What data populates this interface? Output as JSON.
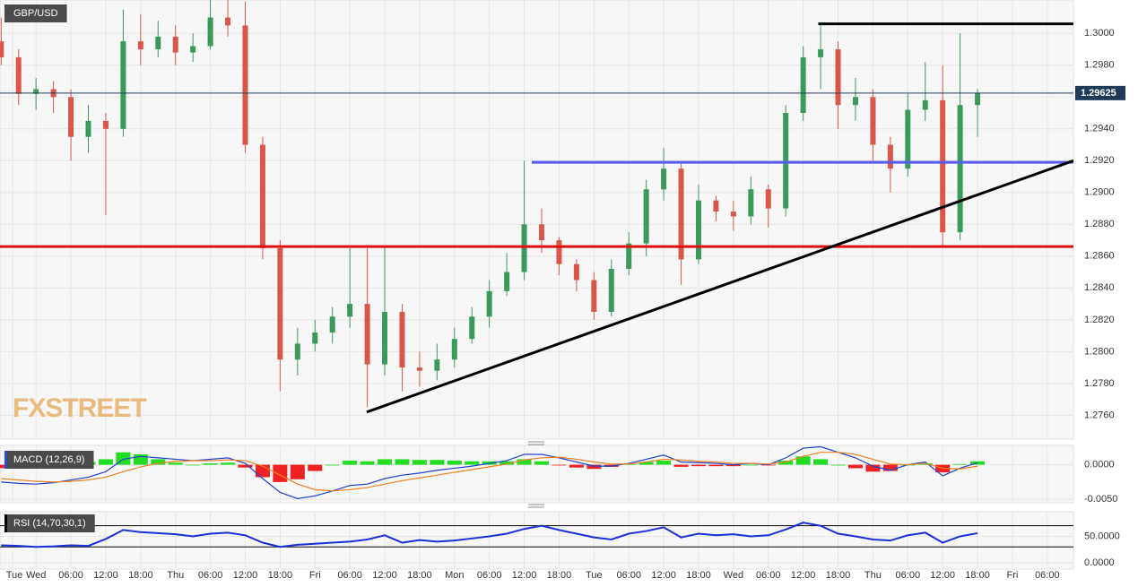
{
  "chart_data": [
    {
      "type": "candlestick",
      "title": "GBP/USD",
      "watermark": "FXSTREET",
      "x": [
        -6,
        -3,
        0,
        3,
        6,
        9,
        12,
        15,
        18,
        21,
        24,
        27,
        30,
        33,
        36,
        39,
        42,
        45,
        48,
        51,
        54,
        57,
        60,
        63,
        66,
        69,
        72,
        75,
        78,
        81,
        84,
        87,
        90,
        93,
        96,
        99,
        102,
        105,
        108,
        111,
        114,
        117,
        120,
        123,
        126,
        129,
        132,
        135,
        138,
        141,
        144,
        147,
        150,
        153,
        156,
        159,
        162
      ],
      "open": [
        1.2995,
        1.2985,
        1.2962,
        1.2965,
        1.296,
        1.2935,
        1.2945,
        1.294,
        1.2995,
        1.299,
        1.2998,
        1.2988,
        1.2992,
        1.301,
        1.3005,
        1.293,
        1.2865,
        1.2795,
        1.2805,
        1.2812,
        1.2822,
        1.283,
        1.2792,
        1.2825,
        1.279,
        1.2788,
        1.2795,
        1.2808,
        1.2822,
        1.2838,
        1.285,
        1.288,
        1.287,
        1.2855,
        1.2845,
        1.2825,
        1.2852,
        1.2868,
        1.2902,
        1.2915,
        1.2858,
        1.2895,
        1.2888,
        1.2885,
        1.2902,
        1.289,
        1.295,
        1.2985,
        1.299,
        1.2955,
        1.296,
        1.293,
        1.2915,
        1.2952,
        1.2958,
        1.2875,
        1.2955
      ],
      "high": [
        1.301,
        1.299,
        1.2972,
        1.297,
        1.2965,
        1.2955,
        1.295,
        1.3015,
        1.3012,
        1.3008,
        1.3005,
        1.3,
        1.3021,
        1.3021,
        1.302,
        1.2935,
        1.287,
        1.2815,
        1.282,
        1.2828,
        1.2865,
        1.2865,
        1.2866,
        1.283,
        1.28,
        1.2805,
        1.2815,
        1.2828,
        1.2845,
        1.2862,
        1.292,
        1.289,
        1.2872,
        1.2858,
        1.285,
        1.2858,
        1.2875,
        1.2908,
        1.2928,
        1.2918,
        1.2905,
        1.2898,
        1.2895,
        1.291,
        1.2905,
        1.2955,
        1.2992,
        1.3007,
        1.2995,
        1.2972,
        1.2965,
        1.2935,
        1.2962,
        1.2982,
        1.298,
        1.3,
        1.2965
      ],
      "low": [
        1.298,
        1.2955,
        1.2952,
        1.295,
        1.292,
        1.2925,
        1.2886,
        1.2935,
        1.298,
        1.2985,
        1.298,
        1.2982,
        1.299,
        1.2998,
        1.2925,
        1.2858,
        1.2775,
        1.2785,
        1.28,
        1.2805,
        1.2815,
        1.2765,
        1.2785,
        1.2775,
        1.2778,
        1.2782,
        1.279,
        1.2805,
        1.2815,
        1.2835,
        1.2845,
        1.2862,
        1.2848,
        1.2838,
        1.282,
        1.2822,
        1.2848,
        1.286,
        1.2895,
        1.2842,
        1.2855,
        1.2882,
        1.2876,
        1.288,
        1.2878,
        1.2885,
        1.2945,
        1.2965,
        1.294,
        1.2945,
        1.292,
        1.29,
        1.291,
        1.2945,
        1.2866,
        1.287,
        1.2935
      ],
      "close": [
        1.2985,
        1.2962,
        1.2965,
        1.296,
        1.2935,
        1.2945,
        1.294,
        1.2995,
        1.299,
        1.2998,
        1.2988,
        1.2992,
        1.301,
        1.3005,
        1.293,
        1.2865,
        1.2795,
        1.2805,
        1.2812,
        1.2822,
        1.283,
        1.2792,
        1.2825,
        1.279,
        1.2788,
        1.2795,
        1.2808,
        1.2822,
        1.2838,
        1.285,
        1.288,
        1.287,
        1.2855,
        1.2845,
        1.2825,
        1.2852,
        1.2868,
        1.2902,
        1.2915,
        1.2858,
        1.2895,
        1.2888,
        1.2885,
        1.2902,
        1.289,
        1.295,
        1.2985,
        1.299,
        1.2955,
        1.296,
        1.293,
        1.2915,
        1.2952,
        1.2958,
        1.2875,
        1.2955,
        1.29625
      ],
      "up_color": "#3a9a5c",
      "down_color": "#d9574a",
      "last_price": 1.29625,
      "last_price_color": "#1f3b5a",
      "levels": [
        {
          "color": "#e01010",
          "x": [
            -6.2,
            178.5
          ],
          "y": [
            1.2866,
            1.2866
          ]
        },
        {
          "color": "#5a5aee",
          "x": [
            85.3,
            178.5
          ],
          "y": [
            1.2919,
            1.2919
          ]
        },
        {
          "color": "#000000",
          "x": [
            134.6,
            178.5
          ],
          "y": [
            1.3006,
            1.3006
          ]
        },
        {
          "color": "#000000",
          "x": [
            56.9,
            178.5
          ],
          "y": [
            1.2762,
            1.292
          ]
        }
      ],
      "xlim": [
        -6.2,
        178.5
      ],
      "ylim": [
        1.2745,
        1.3021
      ],
      "yticks": [
        {
          "value": 1.276,
          "label": "1.2760"
        },
        {
          "value": 1.278,
          "label": "1.2780"
        },
        {
          "value": 1.28,
          "label": "1.2800"
        },
        {
          "value": 1.282,
          "label": "1.2820"
        },
        {
          "value": 1.284,
          "label": "1.2840"
        },
        {
          "value": 1.286,
          "label": "1.2860"
        },
        {
          "value": 1.288,
          "label": "1.2880"
        },
        {
          "value": 1.29,
          "label": "1.2900"
        },
        {
          "value": 1.292,
          "label": "1.2920"
        },
        {
          "value": 1.294,
          "label": "1.2940"
        },
        {
          "value": 1.296,
          "label": "1.2960"
        },
        {
          "value": 1.298,
          "label": "1.2980"
        },
        {
          "value": 1.3,
          "label": "1.3000"
        }
      ],
      "grid": true
    },
    {
      "type": "macd",
      "title": "MACD (12,26,9)",
      "x": [
        -6,
        -3,
        0,
        3,
        6,
        9,
        12,
        15,
        18,
        21,
        24,
        27,
        30,
        33,
        36,
        39,
        42,
        45,
        48,
        51,
        54,
        57,
        60,
        63,
        66,
        69,
        72,
        75,
        78,
        81,
        84,
        87,
        90,
        93,
        96,
        99,
        102,
        105,
        108,
        111,
        114,
        117,
        120,
        123,
        126,
        129,
        132,
        135,
        138,
        141,
        144,
        147,
        150,
        153,
        156,
        159,
        162
      ],
      "series": [
        {
          "color": "#1f3fd1",
          "values": [
            -0.0025,
            -0.0027,
            -0.0028,
            -0.0026,
            -0.0022,
            -0.0018,
            -0.001,
            0.0008,
            0.0012,
            0.001,
            0.0008,
            0.0006,
            0.0008,
            0.001,
            0.0002,
            -0.002,
            -0.004,
            -0.0049,
            -0.0045,
            -0.0038,
            -0.003,
            -0.0028,
            -0.002,
            -0.0015,
            -0.0012,
            -0.0008,
            -0.0005,
            -0.0002,
            0.0002,
            0.0006,
            0.0015,
            0.0015,
            0.001,
            0.0004,
            -0.0002,
            -0.0002,
            0.0002,
            0.0008,
            0.0014,
            0.0004,
            0.0003,
            0.0002,
            0,
            0.0002,
            0,
            0.001,
            0.0024,
            0.0026,
            0.0018,
            0.001,
            -0.0002,
            -0.0008,
            0,
            0.0004,
            -0.0016,
            -0.0005,
            0.0003
          ]
        },
        {
          "color": "#f08020",
          "values": [
            -0.002,
            -0.0022,
            -0.0024,
            -0.0025,
            -0.0024,
            -0.0022,
            -0.0018,
            -0.001,
            -0.0003,
            0.0002,
            0.0005,
            0.0006,
            0.0006,
            0.0007,
            0.0006,
            -0.0002,
            -0.0015,
            -0.0028,
            -0.0036,
            -0.0038,
            -0.0036,
            -0.0033,
            -0.0028,
            -0.0023,
            -0.0019,
            -0.0015,
            -0.0011,
            -0.0007,
            -0.0003,
            0.0001,
            0.0007,
            0.001,
            0.0011,
            0.0008,
            0.0004,
            0.0001,
            0.0001,
            0.0004,
            0.0008,
            0.0007,
            0.0005,
            0.0004,
            0.0002,
            0.0002,
            0.0001,
            0.0004,
            0.0012,
            0.0018,
            0.0018,
            0.0015,
            0.0008,
            0.0001,
            0,
            0.0002,
            -0.0005,
            -0.0006,
            -0.0002
          ]
        }
      ],
      "histogram": {
        "positive_color": "#22dd22",
        "negative_color": "#ee2222",
        "values": [
          -0.0005,
          -0.0005,
          -0.0004,
          -0.0001,
          0.0002,
          0.0004,
          0.0008,
          0.0018,
          0.0015,
          0.0008,
          0.0003,
          0,
          0.0002,
          0.0003,
          -0.0004,
          -0.0018,
          -0.0025,
          -0.0021,
          -0.0009,
          0,
          0.0006,
          0.0005,
          0.0008,
          0.0008,
          0.0007,
          0.0007,
          0.0006,
          0.0005,
          0.0005,
          0.0005,
          0.0008,
          0.0005,
          -0.0001,
          -0.0004,
          -0.0006,
          -0.0003,
          0.0001,
          0.0004,
          0.0006,
          -0.0003,
          -0.0002,
          -0.0002,
          -0.0002,
          0,
          -0.0001,
          0.0006,
          0.0012,
          0.0008,
          0,
          -0.0005,
          -0.001,
          -0.0009,
          0,
          0.0002,
          -0.0011,
          0.0001,
          0.0005
        ]
      },
      "xlim": [
        -6.2,
        178.5
      ],
      "ylim": [
        -0.0055,
        0.0028
      ],
      "yticks": [
        {
          "value": -0.005,
          "label": "-0.0050"
        },
        {
          "value": 0,
          "label": "0.0000"
        }
      ],
      "grid": true
    },
    {
      "type": "line",
      "title": "RSI (14,70,30,1)",
      "x": [
        -6,
        -3,
        0,
        3,
        6,
        9,
        12,
        15,
        18,
        21,
        24,
        27,
        30,
        33,
        36,
        39,
        42,
        45,
        48,
        51,
        54,
        57,
        60,
        63,
        66,
        69,
        72,
        75,
        78,
        81,
        84,
        87,
        90,
        93,
        96,
        99,
        102,
        105,
        108,
        111,
        114,
        117,
        120,
        123,
        126,
        129,
        132,
        135,
        138,
        141,
        144,
        147,
        150,
        153,
        156,
        159,
        162
      ],
      "series": [
        {
          "color": "#1a2fd6",
          "values": [
            33,
            32,
            30,
            31,
            33,
            32,
            45,
            62,
            58,
            56,
            54,
            50,
            55,
            57,
            52,
            38,
            30,
            34,
            36,
            38,
            40,
            44,
            52,
            38,
            43,
            40,
            42,
            46,
            50,
            55,
            64,
            70,
            62,
            55,
            48,
            44,
            55,
            60,
            67,
            48,
            55,
            52,
            54,
            50,
            52,
            63,
            76,
            70,
            55,
            50,
            44,
            42,
            52,
            57,
            38,
            50,
            56
          ]
        }
      ],
      "levels": [
        70,
        30
      ],
      "xlim": [
        -6.2,
        178.5
      ],
      "ylim": [
        -12,
        96.6
      ],
      "yticks": [
        {
          "value": 0,
          "label": "0.0000"
        },
        {
          "value": 50,
          "label": "50.0000"
        }
      ],
      "xticks": [
        {
          "value": -4,
          "label": "Tue"
        },
        {
          "value": 0,
          "label": "Wed"
        },
        {
          "value": 6,
          "label": "06:00"
        },
        {
          "value": 12,
          "label": "12:00"
        },
        {
          "value": 18,
          "label": "18:00"
        },
        {
          "value": 24,
          "label": "Thu"
        },
        {
          "value": 30,
          "label": "06:00"
        },
        {
          "value": 36,
          "label": "12:00"
        },
        {
          "value": 42,
          "label": "18:00"
        },
        {
          "value": 48,
          "label": "Fri"
        },
        {
          "value": 54,
          "label": "06:00"
        },
        {
          "value": 60,
          "label": "12:00"
        },
        {
          "value": 66,
          "label": "18:00"
        },
        {
          "value": 72,
          "label": "Mon"
        },
        {
          "value": 78,
          "label": "06:00"
        },
        {
          "value": 84,
          "label": "12:00"
        },
        {
          "value": 90,
          "label": "18:00"
        },
        {
          "value": 96,
          "label": "Tue"
        },
        {
          "value": 102,
          "label": "06:00"
        },
        {
          "value": 108,
          "label": "12:00"
        },
        {
          "value": 114,
          "label": "18:00"
        },
        {
          "value": 120,
          "label": "Wed"
        },
        {
          "value": 126,
          "label": "06:00"
        },
        {
          "value": 132,
          "label": "12:00"
        },
        {
          "value": 138,
          "label": "18:00"
        },
        {
          "value": 144,
          "label": "Thu"
        },
        {
          "value": 150,
          "label": "06:00"
        },
        {
          "value": 156,
          "label": "12:00"
        },
        {
          "value": 162,
          "label": "18:00"
        },
        {
          "value": 168,
          "label": "Fri"
        },
        {
          "value": 174,
          "label": "06:00"
        }
      ],
      "grid": true
    }
  ]
}
